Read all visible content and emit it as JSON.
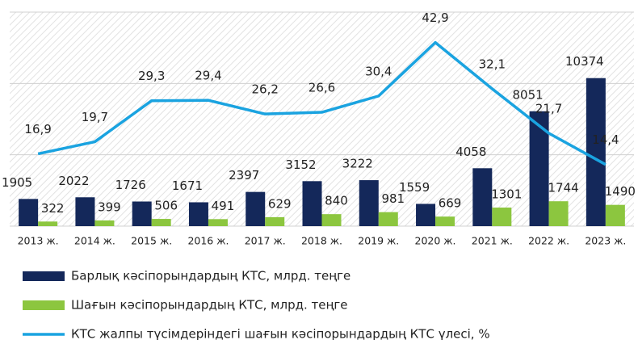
{
  "chart_data": {
    "type": "bar-line",
    "categories": [
      "2013 ж.",
      "2014 ж.",
      "2015 ж.",
      "2016 ж.",
      "2017 ж.",
      "2018 ж.",
      "2019 ж.",
      "2020 ж.",
      "2021 ж.",
      "2022 ж.",
      "2023 ж."
    ],
    "series": [
      {
        "name": "Барлық кәсіпорындардың КТС, млрд. теңге",
        "color": "#14285a",
        "type": "bar",
        "values": [
          1905,
          2022,
          1726,
          1671,
          2397,
          3152,
          3222,
          1559,
          4058,
          8051,
          10374
        ]
      },
      {
        "name": "Шағын кәсіпорындардың КТС, млрд. теңге",
        "color": "#8cc63f",
        "type": "bar",
        "values": [
          322,
          399,
          506,
          491,
          629,
          840,
          981,
          669,
          1301,
          1744,
          1490
        ]
      },
      {
        "name": "КТС жалпы түсімдеріндегі шағын кәсіпорындардың КТС үлесі, %",
        "color": "#1aa3e0",
        "type": "line",
        "axis": "y2",
        "values": [
          16.9,
          19.7,
          29.3,
          29.4,
          26.2,
          26.6,
          30.4,
          42.9,
          32.1,
          21.7,
          14.4
        ],
        "value_labels": [
          "16,9",
          "19,7",
          "29,3",
          "29,4",
          "26,2",
          "26,6",
          "30,4",
          "42,9",
          "32,1",
          "21,7",
          "14,4"
        ]
      }
    ],
    "ylim": [
      0,
      15000
    ],
    "yticks": [
      0,
      5000,
      10000,
      15000
    ],
    "y2lim": [
      0,
      50
    ],
    "grid": true
  }
}
